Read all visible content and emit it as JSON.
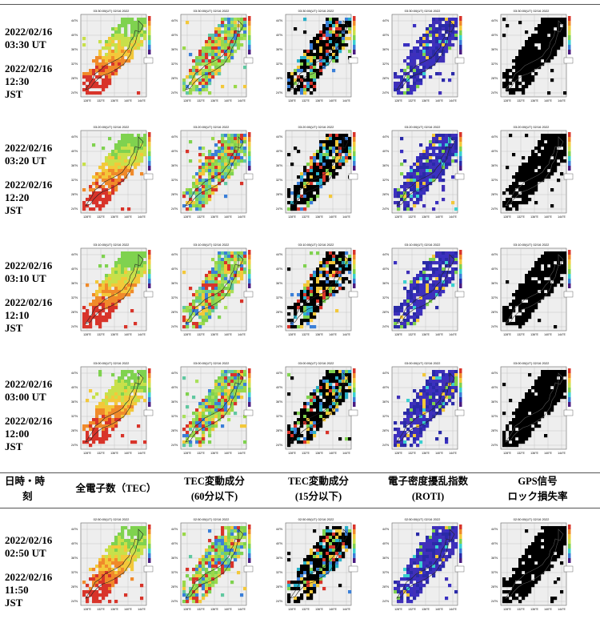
{
  "rows": [
    {
      "ut_date": "2022/02/16",
      "ut_time": "03:30 UT",
      "jst_date": "2022/02/16",
      "jst_time": "12:30",
      "jst_label": "JST",
      "map_title": "03:30:00(UT) 02/16 2022"
    },
    {
      "ut_date": "2022/02/16",
      "ut_time": "03:20 UT",
      "jst_date": "2022/02/16",
      "jst_time": "12:20",
      "jst_label": "JST",
      "map_title": "03:20:00(UT) 02/16 2022"
    },
    {
      "ut_date": "2022/02/16",
      "ut_time": "03:10 UT",
      "jst_date": "2022/02/16",
      "jst_time": "12:10",
      "jst_label": "JST",
      "map_title": "03:10:00(UT) 02/16 2022"
    },
    {
      "ut_date": "2022/02/16",
      "ut_time": "03:00 UT",
      "jst_date": "2022/02/16",
      "jst_time": "12:00",
      "jst_label": "JST",
      "map_title": "03:00:00(UT) 02/16 2022"
    },
    {
      "ut_date": "2022/02/16",
      "ut_time": "02:50 UT",
      "jst_date": "2022/02/16",
      "jst_time": "11:50",
      "jst_label": "JST",
      "map_title": "02:50:00(UT) 02/16 2022"
    }
  ],
  "header": {
    "datetime_line1": "日時・時",
    "datetime_line2": "刻",
    "tec": "全電子数（TEC）",
    "tec60_line1": "TEC変動成分",
    "tec60_line2": "(60分以下)",
    "tec15_line1": "TEC変動成分",
    "tec15_line2": "(15分以下)",
    "roti_line1": "電子密度擾乱指数",
    "roti_line2": "(ROTI)",
    "gps_line1": "GPS信号",
    "gps_line2": "ロック損失率"
  },
  "axis_labels": {
    "lat": [
      "44°N",
      "40°N",
      "36°N",
      "32°N",
      "28°N",
      "24°N"
    ],
    "lon": [
      "128°E",
      "132°E",
      "136°E",
      "140°E",
      "144°E"
    ]
  },
  "map_types": [
    "tec",
    "tec60",
    "tec15",
    "roti",
    "gps"
  ],
  "colors": {
    "rule": "#555555",
    "map_bg": "#eeeeee"
  }
}
